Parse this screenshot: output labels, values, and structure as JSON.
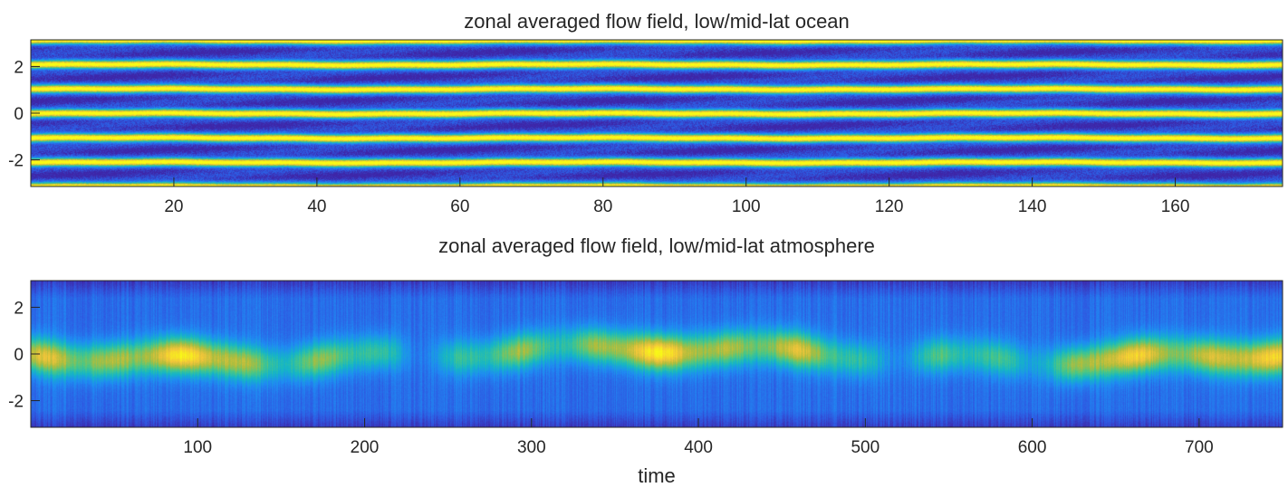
{
  "colors": {
    "text": "#262626",
    "axis": "#262626",
    "colormap": [
      "#3e26a8",
      "#2e5ae2",
      "#1f8bf3",
      "#15b6c6",
      "#4bc784",
      "#b0bd3c",
      "#f3c53a",
      "#f9fb15"
    ]
  },
  "chart_data": [
    {
      "type": "heatmap",
      "title": "zonal averaged flow field, low/mid-lat ocean",
      "xlabel": "",
      "ylabel": "",
      "xlim": [
        0,
        175
      ],
      "ylim": [
        -3.1416,
        3.1416
      ],
      "xticks": [
        20,
        40,
        60,
        80,
        100,
        120,
        140,
        160
      ],
      "xtick_labels": [
        "20",
        "40",
        "60",
        "80",
        "100",
        "120",
        "140",
        "160"
      ],
      "yticks": [
        2,
        0,
        -2
      ],
      "ytick_labels": [
        "2",
        "0",
        "-2"
      ],
      "pattern": "stationary zonal jets (alternating bands)",
      "band_count": 6,
      "colormap": "parula"
    },
    {
      "type": "heatmap",
      "title": "zonal averaged flow field, low/mid-lat atmosphere",
      "xlabel": "time",
      "ylabel": "",
      "xlim": [
        0,
        750
      ],
      "ylim": [
        -3.1416,
        3.1416
      ],
      "xticks": [
        100,
        200,
        300,
        400,
        500,
        600,
        700
      ],
      "xtick_labels": [
        "100",
        "200",
        "300",
        "400",
        "500",
        "600",
        "700"
      ],
      "yticks": [
        2,
        0,
        -2
      ],
      "ytick_labels": [
        "2",
        "0",
        "-2"
      ],
      "pattern": "single equatorial jet with intermittent variability",
      "band_count": 1,
      "colormap": "parula"
    }
  ]
}
